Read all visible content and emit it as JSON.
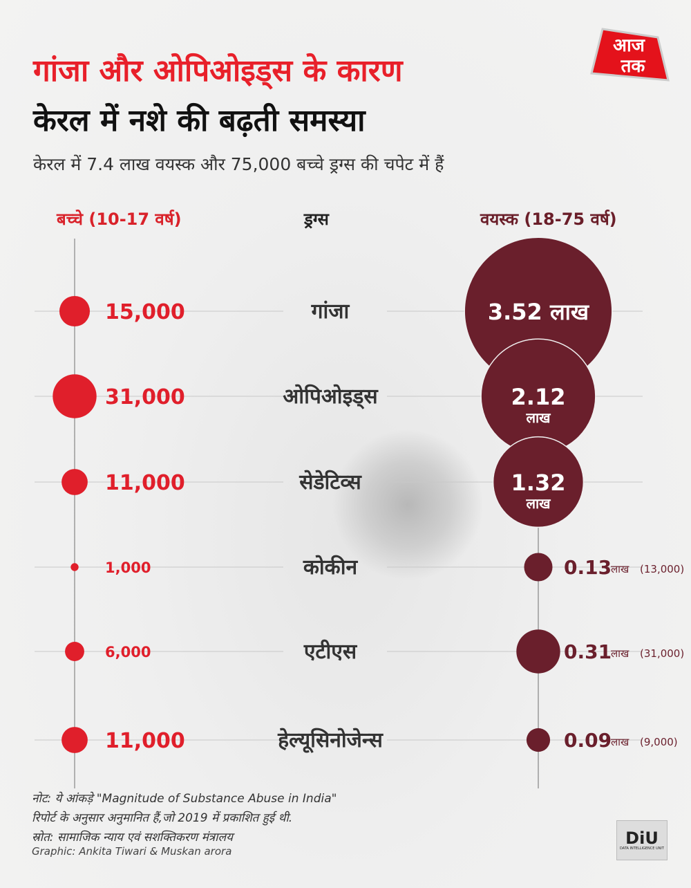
{
  "title_line1": "गांजा और ओपिओइड्स के कारण",
  "title_line2": "केरल में नशे की बढ़ती समस्या",
  "subtitle": "केरल में 7.4 लाख वयस्क और 75,000 बच्चे ड्रग्स की चपेट में हैं",
  "logo_text": "आज तक",
  "colors": {
    "children": "#e01f2b",
    "adults": "#6a1f2c",
    "line": "#9a9a9a"
  },
  "chart_data": {
    "type": "bubble",
    "title": "गांजा और ओपिओइड्स के कारण केरल में नशे की बढ़ती समस्या",
    "headers": {
      "children": "बच्चे (10-17 वर्ष)",
      "drugs": "ड्रग्स",
      "adults": "वयस्क (18-75 वर्ष)"
    },
    "categories": [
      "गांजा",
      "ओपिओइड्स",
      "सेडेटिव्स",
      "कोकीन",
      "एटीएस",
      "हेल्यूसिनोजेन्स"
    ],
    "series": [
      {
        "name": "बच्चे (10-17 वर्ष)",
        "values": [
          15000,
          31000,
          11000,
          1000,
          6000,
          11000
        ],
        "labels": [
          "15,000",
          "31,000",
          "11,000",
          "1,000",
          "6,000",
          "11,000"
        ]
      },
      {
        "name": "वयस्क (18-75 वर्ष)",
        "values": [
          352000,
          212000,
          132000,
          13000,
          31000,
          9000
        ],
        "labels": [
          "3.52",
          "2.12",
          "1.32",
          "0.13",
          "0.31",
          "0.09"
        ],
        "unit": "लाख",
        "extra": [
          "",
          "",
          "",
          "(13,000)",
          "(31,000)",
          "(9,000)"
        ]
      }
    ]
  },
  "notes": {
    "line1": "नोट: ये आंकड़े \"Magnitude of Substance Abuse in India\"",
    "line2": "रिपोर्ट के अनुसार अनुमानित हैं,जो 2019 में प्रकाशित हुई थी.",
    "source": "स्रोत: सामाजिक न्याय एवं सशक्तिकरण मंत्रालय",
    "credit": "Graphic: Ankita Tiwari & Muskan arora"
  },
  "diu": {
    "mark": "DiU",
    "caption": "DATA INTELLIGENCE UNIT"
  }
}
